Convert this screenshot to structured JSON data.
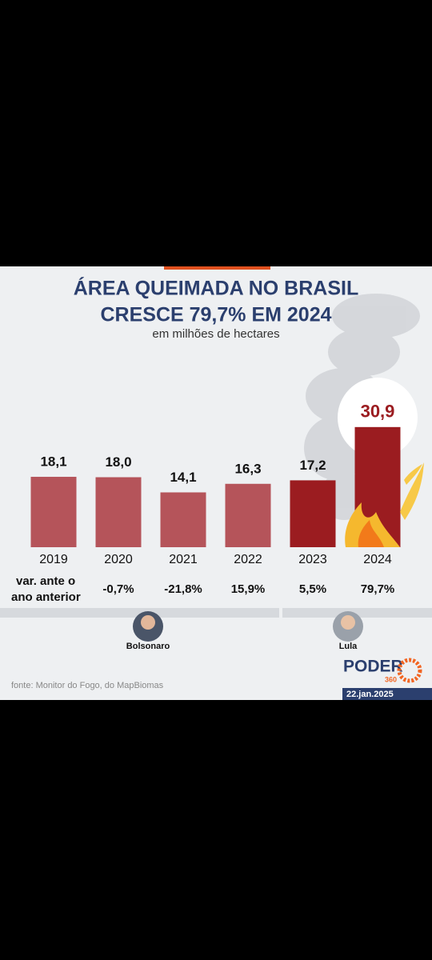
{
  "chart_data": {
    "type": "bar",
    "title": [
      "ÁREA QUEIMADA NO BRASIL",
      "CRESCE 79,7% EM 2024"
    ],
    "subtitle": "em milhões de hectares",
    "categories": [
      "2019",
      "2020",
      "2021",
      "2022",
      "2023",
      "2024"
    ],
    "values": [
      18.1,
      18.0,
      14.1,
      16.3,
      17.2,
      30.9
    ],
    "value_labels": [
      "18,1",
      "18,0",
      "14,1",
      "16,3",
      "17,2",
      "30,9"
    ],
    "colors": [
      "#b5545a",
      "#b5545a",
      "#b5545a",
      "#b5545a",
      "#9b1c20",
      "#9b1c20"
    ],
    "change_title": [
      "var. ante o",
      "ano anterior"
    ],
    "change_labels": [
      null,
      "-0,7%",
      "-21,8%",
      "15,9%",
      "5,5%",
      "79,7%"
    ],
    "periods": [
      "Bolsonaro",
      "Lula"
    ],
    "source": "fonte: Monitor do Fogo, do MapBiomas",
    "logo": [
      "PODER",
      "360"
    ],
    "date": "22.jan.2025"
  }
}
